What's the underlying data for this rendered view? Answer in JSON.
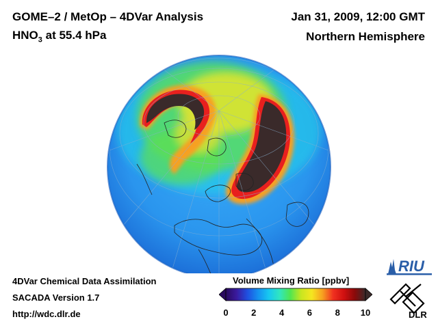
{
  "header": {
    "title_line1": "GOME–2 / MetOp – 4DVar Analysis",
    "species": "HNO",
    "species_sub": "3",
    "level": " at 55.4 hPa",
    "date": "Jan 31, 2009, 12:00 GMT",
    "region": "Northern Hemisphere"
  },
  "footer": {
    "line1": "4DVar Chemical Data Assimilation",
    "line2": "SACADA Version 1.7",
    "line3": "http://wdc.dlr.de"
  },
  "colorbar": {
    "title": "Volume Mixing Ratio [ppbv]",
    "ticks": [
      "0",
      "2",
      "4",
      "6",
      "8",
      "10"
    ],
    "min": 0,
    "max": 10,
    "colors": [
      "#2a0a5e",
      "#3a1a9e",
      "#1f4fe0",
      "#1590f0",
      "#17c8f0",
      "#30e6c0",
      "#50e650",
      "#c8e620",
      "#f5e620",
      "#f7a020",
      "#f03020",
      "#d01010",
      "#8a0a0a",
      "#3a2a2a"
    ]
  },
  "logos": {
    "riu_text": "RIU",
    "dlr_text": "DLR"
  },
  "map": {
    "projection": "orthographic",
    "hemisphere": "Northern Hemisphere",
    "ocean_fill": "#2a9bf0",
    "high_region_color": "#3a2a2a",
    "ring_color": "#e8201e"
  }
}
